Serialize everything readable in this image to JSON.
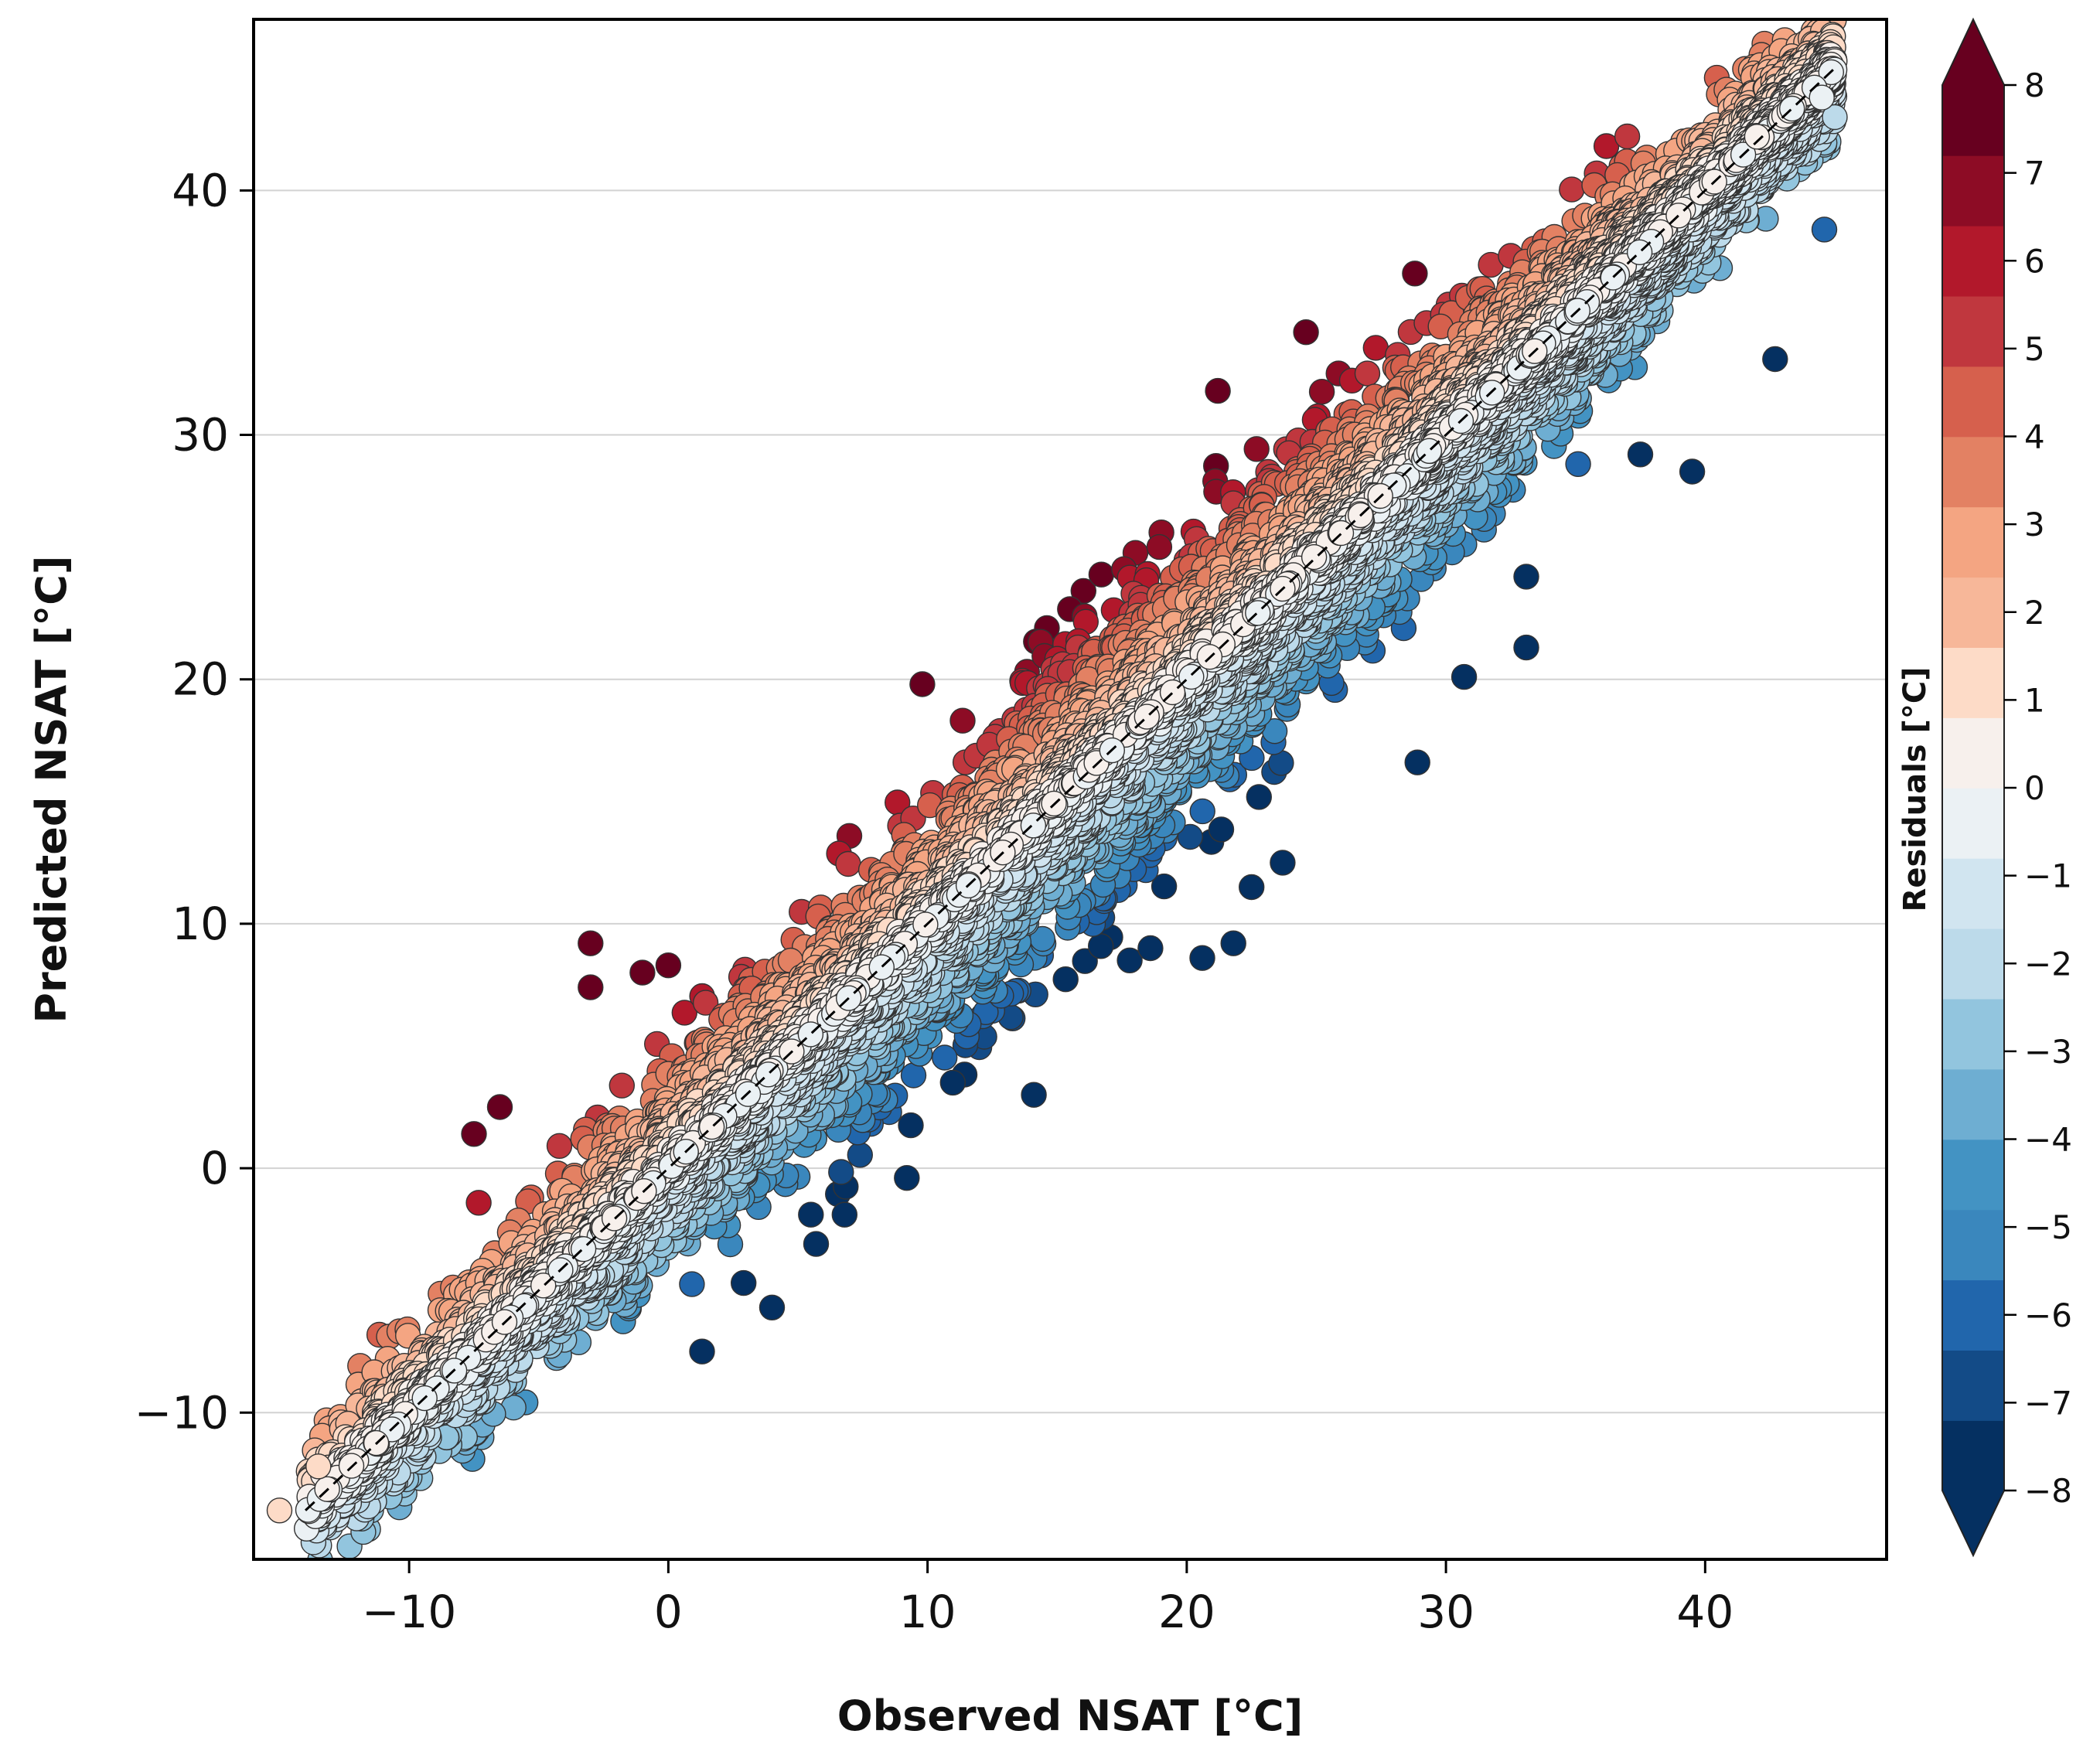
{
  "chart_data": {
    "type": "scatter",
    "title": "",
    "xlabel": "Observed NSAT [°C]",
    "ylabel": "Predicted NSAT [°C]",
    "xlim": [
      -16,
      47
    ],
    "ylim": [
      -16,
      47
    ],
    "xticks": [
      -10,
      0,
      10,
      20,
      30,
      40
    ],
    "yticks": [
      -10,
      0,
      10,
      20,
      30,
      40
    ],
    "xtick_labels": [
      "−10",
      "0",
      "10",
      "20",
      "30",
      "40"
    ],
    "ytick_labels": [
      "−10",
      "0",
      "10",
      "20",
      "30",
      "40"
    ],
    "grid": "horizontal",
    "reference_line": {
      "style": "dashed",
      "color": "#000000",
      "from": [
        -14,
        -14
      ],
      "to": [
        45,
        45
      ]
    },
    "colorbar": {
      "label": "Residuals [°C]",
      "range": [
        -8,
        8
      ],
      "extend": "both",
      "ticks": [
        8,
        7,
        6,
        5,
        4,
        3,
        2,
        1,
        0,
        -1,
        -2,
        -3,
        -4,
        -5,
        -6,
        -7,
        -8
      ],
      "tick_labels": [
        "8",
        "7",
        "6",
        "5",
        "4",
        "3",
        "2",
        "1",
        "0",
        "−1",
        "−2",
        "−3",
        "−4",
        "−5",
        "−6",
        "−7",
        "−8"
      ],
      "colors": [
        "#053061",
        "#134b87",
        "#2166ac",
        "#3a87bd",
        "#4393c3",
        "#6eaed2",
        "#92c5de",
        "#bcdaea",
        "#d1e5f0",
        "#ebf1f4",
        "#f7f0ec",
        "#fddbc7",
        "#f7b799",
        "#f4a582",
        "#e38163",
        "#d6604d",
        "#c0373e",
        "#b2182b",
        "#8d0c25",
        "#67001f"
      ]
    },
    "series": [
      {
        "name": "outliers (observed, predicted)",
        "points": [
          [
            -15,
            -14
          ],
          [
            -13.5,
            -12.2
          ],
          [
            -7.5,
            1.4
          ],
          [
            -6.5,
            2.5
          ],
          [
            -3,
            9.2
          ],
          [
            -3,
            7.4
          ],
          [
            -1,
            8
          ],
          [
            0,
            8.3
          ],
          [
            1.3,
            -7.5
          ],
          [
            4,
            -5.7
          ],
          [
            5.5,
            -1.9
          ],
          [
            5.7,
            -3.1
          ],
          [
            6.8,
            -1.9
          ],
          [
            9.2,
            -0.4
          ],
          [
            9.8,
            19.8
          ],
          [
            14.1,
            3
          ],
          [
            17.8,
            8.5
          ],
          [
            18.6,
            9
          ],
          [
            20.6,
            8.6
          ],
          [
            21.8,
            9.2
          ],
          [
            22.5,
            11.5
          ],
          [
            23.7,
            12.5
          ],
          [
            21.2,
            31.8
          ],
          [
            24.6,
            34.2
          ],
          [
            28.8,
            36.6
          ],
          [
            28.9,
            16.6
          ],
          [
            30.7,
            20.1
          ],
          [
            33.1,
            21.3
          ],
          [
            33.1,
            24.2
          ],
          [
            37.5,
            29.2
          ],
          [
            39.5,
            28.5
          ],
          [
            42.7,
            33.1
          ],
          [
            44.6,
            38.4
          ],
          [
            45,
            43
          ],
          [
            44.5,
            43.8
          ],
          [
            42,
            42.2
          ]
        ]
      },
      {
        "name": "main cloud",
        "x_range": [
          -14,
          45
        ],
        "residual_range": [
          -8,
          8
        ],
        "note": "dense band of thousands of points around y = x, colored by residual (predicted − observed)"
      }
    ]
  }
}
